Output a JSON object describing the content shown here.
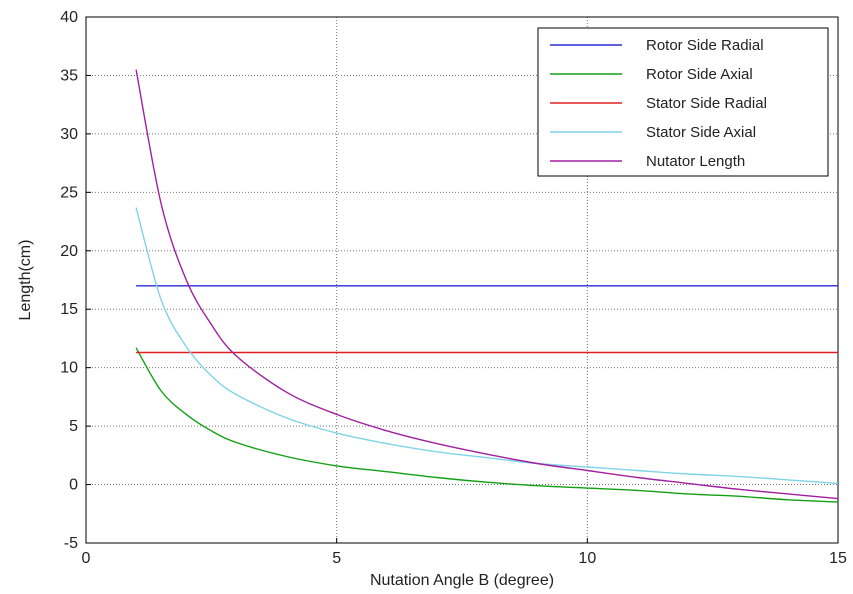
{
  "chart_data": {
    "type": "line",
    "xlabel": "Nutation Angle B (degree)",
    "ylabel": "Length(cm)",
    "xlim": [
      0,
      15
    ],
    "ylim": [
      -5,
      40
    ],
    "x_ticks": [
      0,
      5,
      10,
      15
    ],
    "y_ticks": [
      -5,
      0,
      5,
      10,
      15,
      20,
      25,
      30,
      35,
      40
    ],
    "grid": true,
    "grid_style": "dotted",
    "legend_position": "top-right",
    "series": [
      {
        "name": "Rotor Side Radial",
        "color": "#2b2bd0",
        "x": [
          1,
          15
        ],
        "y": [
          17.0,
          17.0
        ]
      },
      {
        "name": "Rotor Side Axial",
        "color": "#12a012",
        "x": [
          1,
          1.5,
          2,
          2.5,
          3,
          4,
          5,
          6,
          7,
          8,
          9,
          10,
          11,
          12,
          13,
          14,
          15
        ],
        "y": [
          11.7,
          8.0,
          6.0,
          4.6,
          3.6,
          2.4,
          1.6,
          1.1,
          0.6,
          0.2,
          -0.1,
          -0.3,
          -0.5,
          -0.8,
          -1.0,
          -1.3,
          -1.5
        ]
      },
      {
        "name": "Stator Side Radial",
        "color": "#e02020",
        "x": [
          1,
          15
        ],
        "y": [
          11.3,
          11.3
        ]
      },
      {
        "name": "Stator Side Axial",
        "color": "#7fd4e8",
        "x": [
          1,
          1.5,
          2,
          2.5,
          3,
          4,
          5,
          6,
          7,
          8,
          9,
          10,
          11,
          12,
          13,
          14,
          15
        ],
        "y": [
          23.7,
          15.8,
          11.8,
          9.3,
          7.7,
          5.7,
          4.4,
          3.5,
          2.8,
          2.3,
          1.8,
          1.5,
          1.2,
          0.9,
          0.7,
          0.4,
          0.1
        ]
      },
      {
        "name": "Nutator Length",
        "color": "#a020a0",
        "x": [
          1,
          1.5,
          2,
          2.5,
          3,
          4,
          5,
          6,
          7,
          8,
          9,
          10,
          11,
          12,
          13,
          14,
          15
        ],
        "y": [
          35.5,
          24.0,
          17.5,
          13.7,
          11.0,
          7.9,
          6.0,
          4.6,
          3.5,
          2.6,
          1.8,
          1.2,
          0.6,
          0.1,
          -0.4,
          -0.8,
          -1.2
        ]
      }
    ]
  }
}
